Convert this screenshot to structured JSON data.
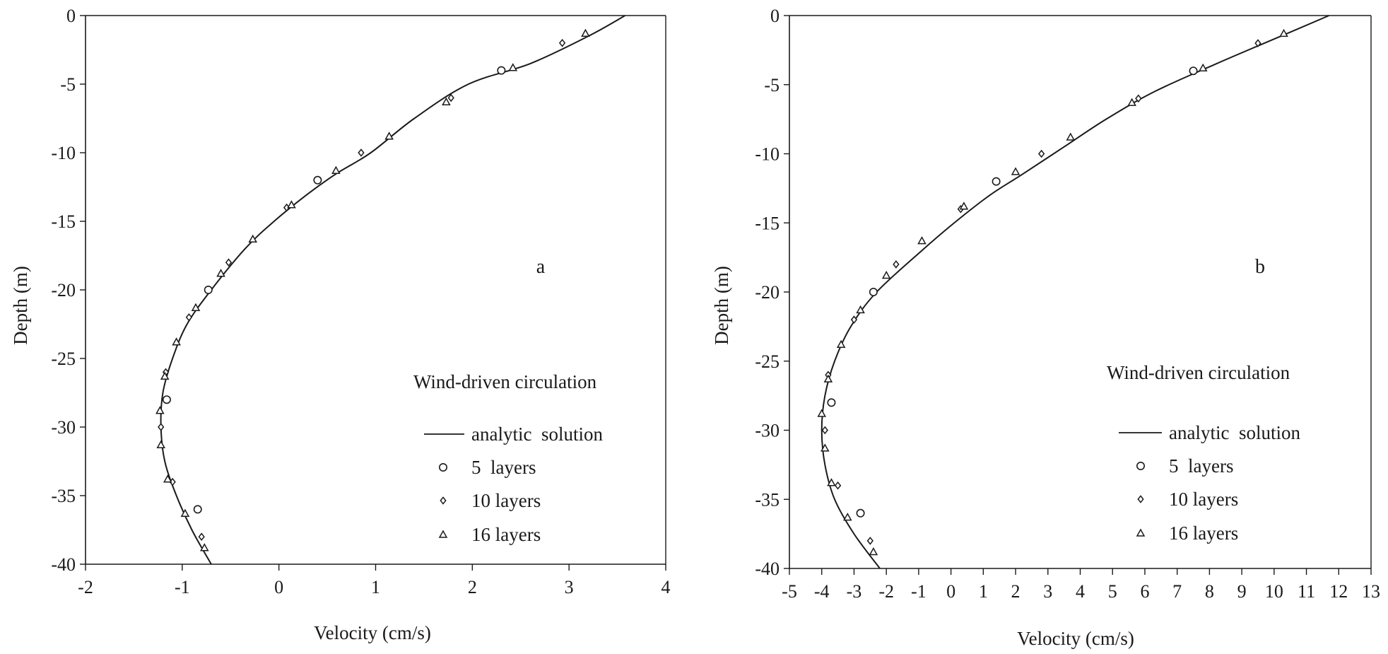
{
  "chart_data": [
    {
      "type": "line",
      "panel_label": "a",
      "xlabel": "Velocity (cm/s)",
      "ylabel": "Depth (m)",
      "xlim": [
        -2,
        4
      ],
      "ylim": [
        -40,
        0
      ],
      "xticks": [
        -2,
        -1,
        0,
        1,
        2,
        3,
        4
      ],
      "yticks": [
        0,
        -5,
        -10,
        -15,
        -20,
        -25,
        -30,
        -35,
        -40
      ],
      "grid": false,
      "legend": {
        "title": "Wind-driven circulation",
        "position": "lower-right",
        "entries": [
          {
            "label": "analytic  solution",
            "marker": "line"
          },
          {
            "label": "5  layers",
            "marker": "circle"
          },
          {
            "label": "10 layers",
            "marker": "diamond"
          },
          {
            "label": "16 layers",
            "marker": "triangle"
          }
        ]
      },
      "series": [
        {
          "name": "analytic  solution",
          "kind": "line",
          "x": [
            3.58,
            3.2,
            2.6,
            1.96,
            1.4,
            0.95,
            0.6,
            0.3,
            -0.05,
            -0.35,
            -0.7,
            -0.95,
            -1.1,
            -1.2,
            -1.22,
            -1.18,
            -1.06,
            -0.9,
            -0.7
          ],
          "y": [
            0,
            -1.5,
            -3.5,
            -5,
            -7.5,
            -10,
            -11.5,
            -13,
            -15,
            -17,
            -20,
            -22.5,
            -25,
            -27.5,
            -30,
            -32.5,
            -35,
            -37.5,
            -40
          ]
        },
        {
          "name": "5  layers",
          "kind": "circle",
          "x": [
            2.3,
            0.4,
            -0.73,
            -1.16,
            -0.84
          ],
          "y": [
            -4,
            -12,
            -20,
            -28,
            -36
          ]
        },
        {
          "name": "10 layers",
          "kind": "diamond",
          "x": [
            2.93,
            1.78,
            0.85,
            0.08,
            -0.52,
            -0.93,
            -1.17,
            -1.22,
            -1.1,
            -0.8
          ],
          "y": [
            -2,
            -6,
            -10,
            -14,
            -18,
            -22,
            -26,
            -30,
            -34,
            -38
          ]
        },
        {
          "name": "16 layers",
          "kind": "triangle",
          "x": [
            3.17,
            2.42,
            1.73,
            1.14,
            0.59,
            0.13,
            -0.27,
            -0.6,
            -0.86,
            -1.06,
            -1.18,
            -1.23,
            -1.22,
            -1.15,
            -0.97,
            -0.77
          ],
          "y": [
            -1.3,
            -3.8,
            -6.3,
            -8.8,
            -11.3,
            -13.8,
            -16.3,
            -18.8,
            -21.3,
            -23.8,
            -26.3,
            -28.8,
            -31.3,
            -33.8,
            -36.3,
            -38.8
          ]
        }
      ]
    },
    {
      "type": "line",
      "panel_label": "b",
      "xlabel": "Velocity (cm/s)",
      "ylabel": "Depth (m)",
      "xlim": [
        -5,
        13
      ],
      "ylim": [
        -40,
        0
      ],
      "xticks": [
        -5,
        -4,
        -3,
        -2,
        -1,
        0,
        1,
        2,
        3,
        4,
        5,
        6,
        7,
        8,
        9,
        10,
        11,
        12,
        13
      ],
      "yticks": [
        0,
        -5,
        -10,
        -15,
        -20,
        -25,
        -30,
        -35,
        -40
      ],
      "grid": false,
      "legend": {
        "title": "Wind-driven circulation",
        "position": "lower-right",
        "entries": [
          {
            "label": "analytic  solution",
            "marker": "line"
          },
          {
            "label": "5  layers",
            "marker": "circle"
          },
          {
            "label": "10 layers",
            "marker": "diamond"
          },
          {
            "label": "16 layers",
            "marker": "triangle"
          }
        ]
      },
      "series": [
        {
          "name": "analytic  solution",
          "kind": "line",
          "x": [
            11.7,
            10.2,
            8.2,
            6.3,
            4.8,
            3.5,
            2.2,
            1.2,
            0.1,
            -0.9,
            -2.3,
            -3.1,
            -3.6,
            -3.9,
            -4.0,
            -3.9,
            -3.6,
            -3.0,
            -2.2
          ],
          "y": [
            0,
            -1.5,
            -3.5,
            -5.5,
            -7.5,
            -9.5,
            -11.5,
            -13,
            -15,
            -17,
            -20,
            -22.5,
            -25,
            -27.5,
            -30,
            -32.5,
            -35,
            -37.5,
            -40
          ]
        },
        {
          "name": "5  layers",
          "kind": "circle",
          "x": [
            7.5,
            1.4,
            -2.4,
            -3.7,
            -2.8
          ],
          "y": [
            -4,
            -12,
            -20,
            -28,
            -36
          ]
        },
        {
          "name": "10 layers",
          "kind": "diamond",
          "x": [
            9.5,
            5.8,
            2.8,
            0.3,
            -1.7,
            -3.0,
            -3.8,
            -3.9,
            -3.5,
            -2.5
          ],
          "y": [
            -2,
            -6,
            -10,
            -14,
            -18,
            -22,
            -26,
            -30,
            -34,
            -38
          ]
        },
        {
          "name": "16 layers",
          "kind": "triangle",
          "x": [
            10.3,
            7.8,
            5.6,
            3.7,
            2.0,
            0.4,
            -0.9,
            -2.0,
            -2.8,
            -3.4,
            -3.8,
            -4.0,
            -3.9,
            -3.7,
            -3.2,
            -2.4
          ],
          "y": [
            -1.3,
            -3.8,
            -6.3,
            -8.8,
            -11.3,
            -13.8,
            -16.3,
            -18.8,
            -21.3,
            -23.8,
            -26.3,
            -28.8,
            -31.3,
            -33.8,
            -36.3,
            -38.8
          ]
        }
      ]
    }
  ]
}
